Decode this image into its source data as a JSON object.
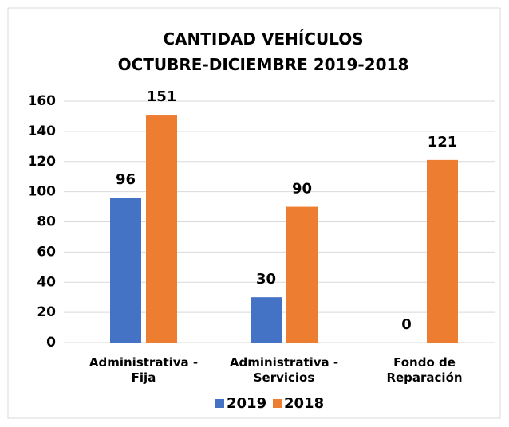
{
  "chart_data": {
    "type": "bar",
    "title": "CANTIDAD VEHÍCULOS\nOCTUBRE-DICIEMBRE 2019-2018",
    "categories": [
      "Administrativa -\nFija",
      "Administrativa -\nServicios",
      "Fondo de\nReparación"
    ],
    "series": [
      {
        "name": "2019",
        "color": "#4472c4",
        "values": [
          96,
          30,
          0
        ]
      },
      {
        "name": "2018",
        "color": "#ed7d31",
        "values": [
          151,
          90,
          121
        ]
      }
    ],
    "ylim": [
      0,
      160
    ],
    "yticks": [
      0,
      20,
      40,
      60,
      80,
      100,
      120,
      140,
      160
    ],
    "grid": true,
    "legend": "bottom"
  }
}
